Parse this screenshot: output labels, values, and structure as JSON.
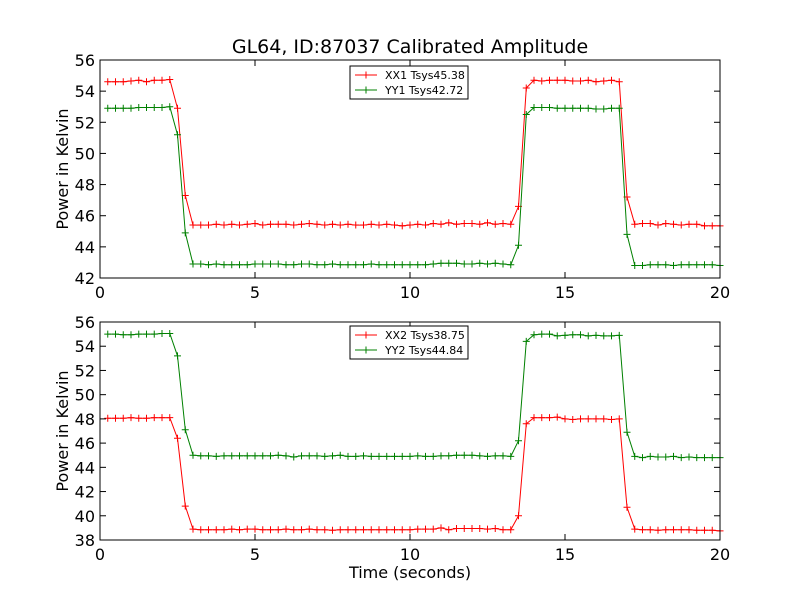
{
  "title": "GL64, ID:87037 Calibrated Amplitude",
  "chart_data": [
    {
      "type": "line",
      "ylabel": "Power in Kelvin",
      "xlabel": "",
      "xlim": [
        0,
        20
      ],
      "ylim": [
        42,
        56
      ],
      "xticks": [
        0,
        5,
        10,
        15,
        20
      ],
      "yticks": [
        42,
        44,
        46,
        48,
        50,
        52,
        54,
        56
      ],
      "grid": false,
      "legend": "top-center",
      "x": [
        0.25,
        0.5,
        0.75,
        1.0,
        1.25,
        1.5,
        1.75,
        2.0,
        2.25,
        2.5,
        2.75,
        3.0,
        3.25,
        3.5,
        3.75,
        4.0,
        4.25,
        4.5,
        4.75,
        5.0,
        5.25,
        5.5,
        5.75,
        6.0,
        6.25,
        6.5,
        6.75,
        7.0,
        7.25,
        7.5,
        7.75,
        8.0,
        8.25,
        8.5,
        8.75,
        9.0,
        9.25,
        9.5,
        9.75,
        10.0,
        10.25,
        10.5,
        10.75,
        11.0,
        11.25,
        11.5,
        11.75,
        12.0,
        12.25,
        12.5,
        12.75,
        13.0,
        13.25,
        13.5,
        13.75,
        14.0,
        14.25,
        14.5,
        14.75,
        15.0,
        15.25,
        15.5,
        15.75,
        16.0,
        16.25,
        16.5,
        16.75,
        17.0,
        17.25,
        17.5,
        17.75,
        18.0,
        18.25,
        18.5,
        18.75,
        19.0,
        19.25,
        19.5,
        19.75,
        20.0
      ],
      "series": [
        {
          "name": "XX1 Tsys45.38",
          "color": "#ff0000",
          "values": [
            54.6,
            54.6,
            54.6,
            54.65,
            54.7,
            54.6,
            54.7,
            54.7,
            54.75,
            52.9,
            47.3,
            45.4,
            45.4,
            45.4,
            45.45,
            45.4,
            45.45,
            45.4,
            45.45,
            45.5,
            45.4,
            45.45,
            45.45,
            45.45,
            45.4,
            45.45,
            45.5,
            45.45,
            45.4,
            45.45,
            45.4,
            45.45,
            45.4,
            45.4,
            45.45,
            45.4,
            45.45,
            45.4,
            45.35,
            45.4,
            45.45,
            45.4,
            45.5,
            45.45,
            45.55,
            45.45,
            45.5,
            45.5,
            45.45,
            45.55,
            45.45,
            45.5,
            45.45,
            46.6,
            54.2,
            54.7,
            54.65,
            54.7,
            54.7,
            54.7,
            54.65,
            54.65,
            54.7,
            54.6,
            54.65,
            54.7,
            54.6,
            47.2,
            45.45,
            45.5,
            45.5,
            45.4,
            45.5,
            45.45,
            45.4,
            45.45,
            45.45,
            45.35,
            45.35,
            45.35
          ]
        },
        {
          "name": "YY1 Tsys42.72",
          "color": "#008000",
          "values": [
            52.9,
            52.9,
            52.9,
            52.9,
            52.95,
            52.95,
            52.95,
            52.95,
            53.0,
            51.2,
            44.9,
            42.9,
            42.9,
            42.85,
            42.9,
            42.85,
            42.85,
            42.85,
            42.85,
            42.9,
            42.9,
            42.9,
            42.9,
            42.85,
            42.85,
            42.9,
            42.9,
            42.85,
            42.85,
            42.9,
            42.85,
            42.85,
            42.85,
            42.85,
            42.9,
            42.85,
            42.85,
            42.85,
            42.85,
            42.85,
            42.85,
            42.85,
            42.9,
            42.95,
            42.95,
            42.95,
            42.9,
            42.9,
            42.95,
            42.9,
            42.95,
            42.9,
            42.85,
            44.1,
            52.5,
            52.95,
            52.95,
            52.95,
            52.9,
            52.9,
            52.9,
            52.9,
            52.9,
            52.85,
            52.85,
            52.9,
            52.9,
            44.8,
            42.8,
            42.8,
            42.85,
            42.85,
            42.85,
            42.8,
            42.85,
            42.85,
            42.85,
            42.85,
            42.85,
            42.8
          ]
        }
      ]
    },
    {
      "type": "line",
      "ylabel": "Power in Kelvin",
      "xlabel": "Time (seconds)",
      "xlim": [
        0,
        20
      ],
      "ylim": [
        38,
        56
      ],
      "xticks": [
        0,
        5,
        10,
        15,
        20
      ],
      "yticks": [
        38,
        40,
        42,
        44,
        46,
        48,
        50,
        52,
        54,
        56
      ],
      "grid": false,
      "legend": "top-center",
      "x": [
        0.25,
        0.5,
        0.75,
        1.0,
        1.25,
        1.5,
        1.75,
        2.0,
        2.25,
        2.5,
        2.75,
        3.0,
        3.25,
        3.5,
        3.75,
        4.0,
        4.25,
        4.5,
        4.75,
        5.0,
        5.25,
        5.5,
        5.75,
        6.0,
        6.25,
        6.5,
        6.75,
        7.0,
        7.25,
        7.5,
        7.75,
        8.0,
        8.25,
        8.5,
        8.75,
        9.0,
        9.25,
        9.5,
        9.75,
        10.0,
        10.25,
        10.5,
        10.75,
        11.0,
        11.25,
        11.5,
        11.75,
        12.0,
        12.25,
        12.5,
        12.75,
        13.0,
        13.25,
        13.5,
        13.75,
        14.0,
        14.25,
        14.5,
        14.75,
        15.0,
        15.25,
        15.5,
        15.75,
        16.0,
        16.25,
        16.5,
        16.75,
        17.0,
        17.25,
        17.5,
        17.75,
        18.0,
        18.25,
        18.5,
        18.75,
        19.0,
        19.25,
        19.5,
        19.75,
        20.0
      ],
      "series": [
        {
          "name": "XX2 Tsys38.75",
          "color": "#ff0000",
          "values": [
            48.05,
            48.05,
            48.05,
            48.1,
            48.05,
            48.05,
            48.1,
            48.1,
            48.1,
            46.4,
            40.8,
            38.9,
            38.85,
            38.85,
            38.85,
            38.85,
            38.9,
            38.85,
            38.9,
            38.9,
            38.85,
            38.85,
            38.85,
            38.9,
            38.85,
            38.85,
            38.9,
            38.85,
            38.85,
            38.8,
            38.85,
            38.85,
            38.85,
            38.85,
            38.85,
            38.85,
            38.85,
            38.85,
            38.85,
            38.85,
            38.9,
            38.9,
            38.9,
            39.0,
            38.85,
            38.95,
            38.95,
            38.95,
            38.95,
            38.9,
            38.95,
            38.85,
            38.85,
            40.0,
            47.6,
            48.1,
            48.1,
            48.1,
            48.15,
            48.0,
            47.95,
            48.0,
            48.0,
            48.0,
            48.0,
            47.95,
            48.0,
            40.7,
            38.9,
            38.85,
            38.85,
            38.8,
            38.85,
            38.85,
            38.85,
            38.85,
            38.8,
            38.8,
            38.8,
            38.75
          ]
        },
        {
          "name": "YY2 Tsys44.84",
          "color": "#008000",
          "values": [
            55.0,
            55.0,
            54.95,
            54.95,
            55.0,
            55.0,
            55.0,
            55.05,
            55.05,
            53.2,
            47.1,
            45.0,
            44.95,
            44.95,
            44.9,
            44.95,
            44.95,
            44.95,
            44.95,
            44.95,
            44.95,
            44.95,
            45.0,
            44.95,
            44.85,
            44.95,
            44.95,
            44.95,
            44.9,
            44.95,
            45.0,
            44.9,
            44.9,
            44.95,
            44.9,
            44.9,
            44.9,
            44.9,
            44.9,
            44.9,
            44.95,
            44.9,
            44.9,
            44.95,
            44.95,
            45.0,
            45.0,
            45.0,
            44.95,
            44.9,
            44.95,
            44.95,
            44.9,
            46.2,
            54.4,
            54.95,
            55.0,
            55.0,
            54.85,
            54.9,
            54.95,
            54.95,
            54.85,
            54.9,
            54.85,
            54.85,
            54.9,
            46.9,
            44.9,
            44.8,
            44.9,
            44.85,
            44.85,
            44.9,
            44.8,
            44.85,
            44.8,
            44.8,
            44.8,
            44.8
          ]
        }
      ]
    }
  ]
}
